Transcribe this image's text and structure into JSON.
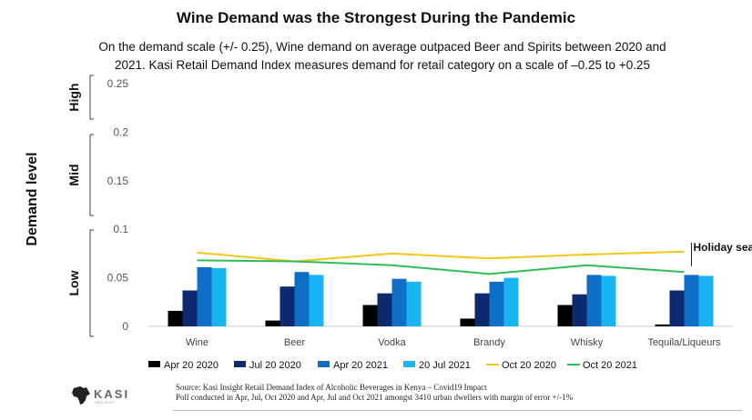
{
  "title": "Wine Demand was the Strongest During the Pandemic",
  "subtitle": {
    "line1": "On the demand scale (+/- 0.25), Wine demand on average outpaced Beer and Spirits between 2020 and",
    "line2": "2021. Kasi Retail Demand Index measures demand for retail category on a scale of –0.25 to +0.25"
  },
  "chart_data": {
    "type": "bar",
    "title": "Wine Demand was the Strongest During the Pandemic",
    "ylabel": "Demand level",
    "xlabel": "",
    "ylim": [
      0,
      0.25
    ],
    "yticks": [
      "0.25",
      "0.2",
      "0.15",
      "0.1",
      "0.05",
      "0"
    ],
    "bands": [
      "High",
      "Mid",
      "Low"
    ],
    "categories": [
      "Wine",
      "Beer",
      "Vodka",
      "Brandy",
      "Whisky",
      "Tequila/Liqueurs"
    ],
    "series": [
      {
        "name": "Apr 20 2020",
        "kind": "bar",
        "color": "#000000",
        "values": [
          0.016,
          0.006,
          0.022,
          0.008,
          0.022,
          0.002
        ]
      },
      {
        "name": "Jul 20 2020",
        "kind": "bar",
        "color": "#0d2a6e",
        "values": [
          0.037,
          0.041,
          0.034,
          0.034,
          0.033,
          0.037
        ]
      },
      {
        "name": "Apr 20 2021",
        "kind": "bar",
        "color": "#0f6fc6",
        "values": [
          0.061,
          0.056,
          0.049,
          0.046,
          0.053,
          0.053
        ]
      },
      {
        "name": "20 Jul 2021",
        "kind": "bar",
        "color": "#19b4f2",
        "values": [
          0.06,
          0.053,
          0.046,
          0.05,
          0.052,
          0.052
        ]
      },
      {
        "name": "Oct 20 2020",
        "kind": "line",
        "color": "#f5c518",
        "values": [
          0.076,
          0.067,
          0.075,
          0.07,
          0.074,
          0.077
        ]
      },
      {
        "name": "Oct 20 2021",
        "kind": "line",
        "color": "#2ebd59",
        "values": [
          0.068,
          0.067,
          0.063,
          0.054,
          0.063,
          0.056
        ]
      }
    ],
    "annotations": [
      {
        "text": "Holiday season",
        "category": "Tequila/Liqueurs",
        "value": 0.077
      }
    ]
  },
  "source": {
    "line1": "Source: Kasi Insight  Retail Demand Index of Alcoholic Beverages in Kenya – Covid19 Impact",
    "line2": "Poll conducted in Apr, Jul, Oct 2020 and Apr, Jul and Oct 2021 amongst 3410 urban dwellers with margin of error +/-1%"
  },
  "logo": {
    "name": "KASI",
    "tagline": "INSIGHT"
  }
}
